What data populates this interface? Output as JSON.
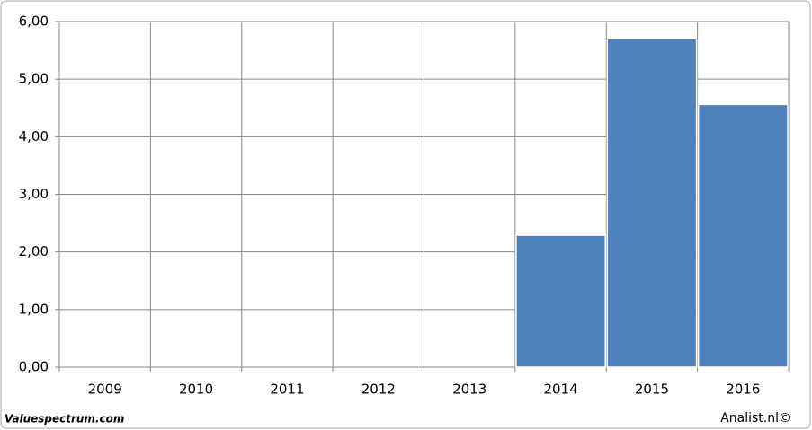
{
  "chart_data": {
    "type": "bar",
    "categories": [
      "2009",
      "2010",
      "2011",
      "2012",
      "2013",
      "2014",
      "2015",
      "2016"
    ],
    "values": [
      null,
      null,
      null,
      null,
      null,
      2.29,
      5.7,
      4.56
    ],
    "color": "#4f81bd",
    "ylim": [
      0,
      6
    ],
    "yticks": [
      {
        "value": 0,
        "label": "0,00"
      },
      {
        "value": 1,
        "label": "1,00"
      },
      {
        "value": 2,
        "label": "2,00"
      },
      {
        "value": 3,
        "label": "3,00"
      },
      {
        "value": 4,
        "label": "4,00"
      },
      {
        "value": 5,
        "label": "5,00"
      },
      {
        "value": 6,
        "label": "6,00"
      }
    ],
    "grid": true,
    "source_left": "Valuespectrum.com",
    "source_right": "Analist.nl©"
  }
}
